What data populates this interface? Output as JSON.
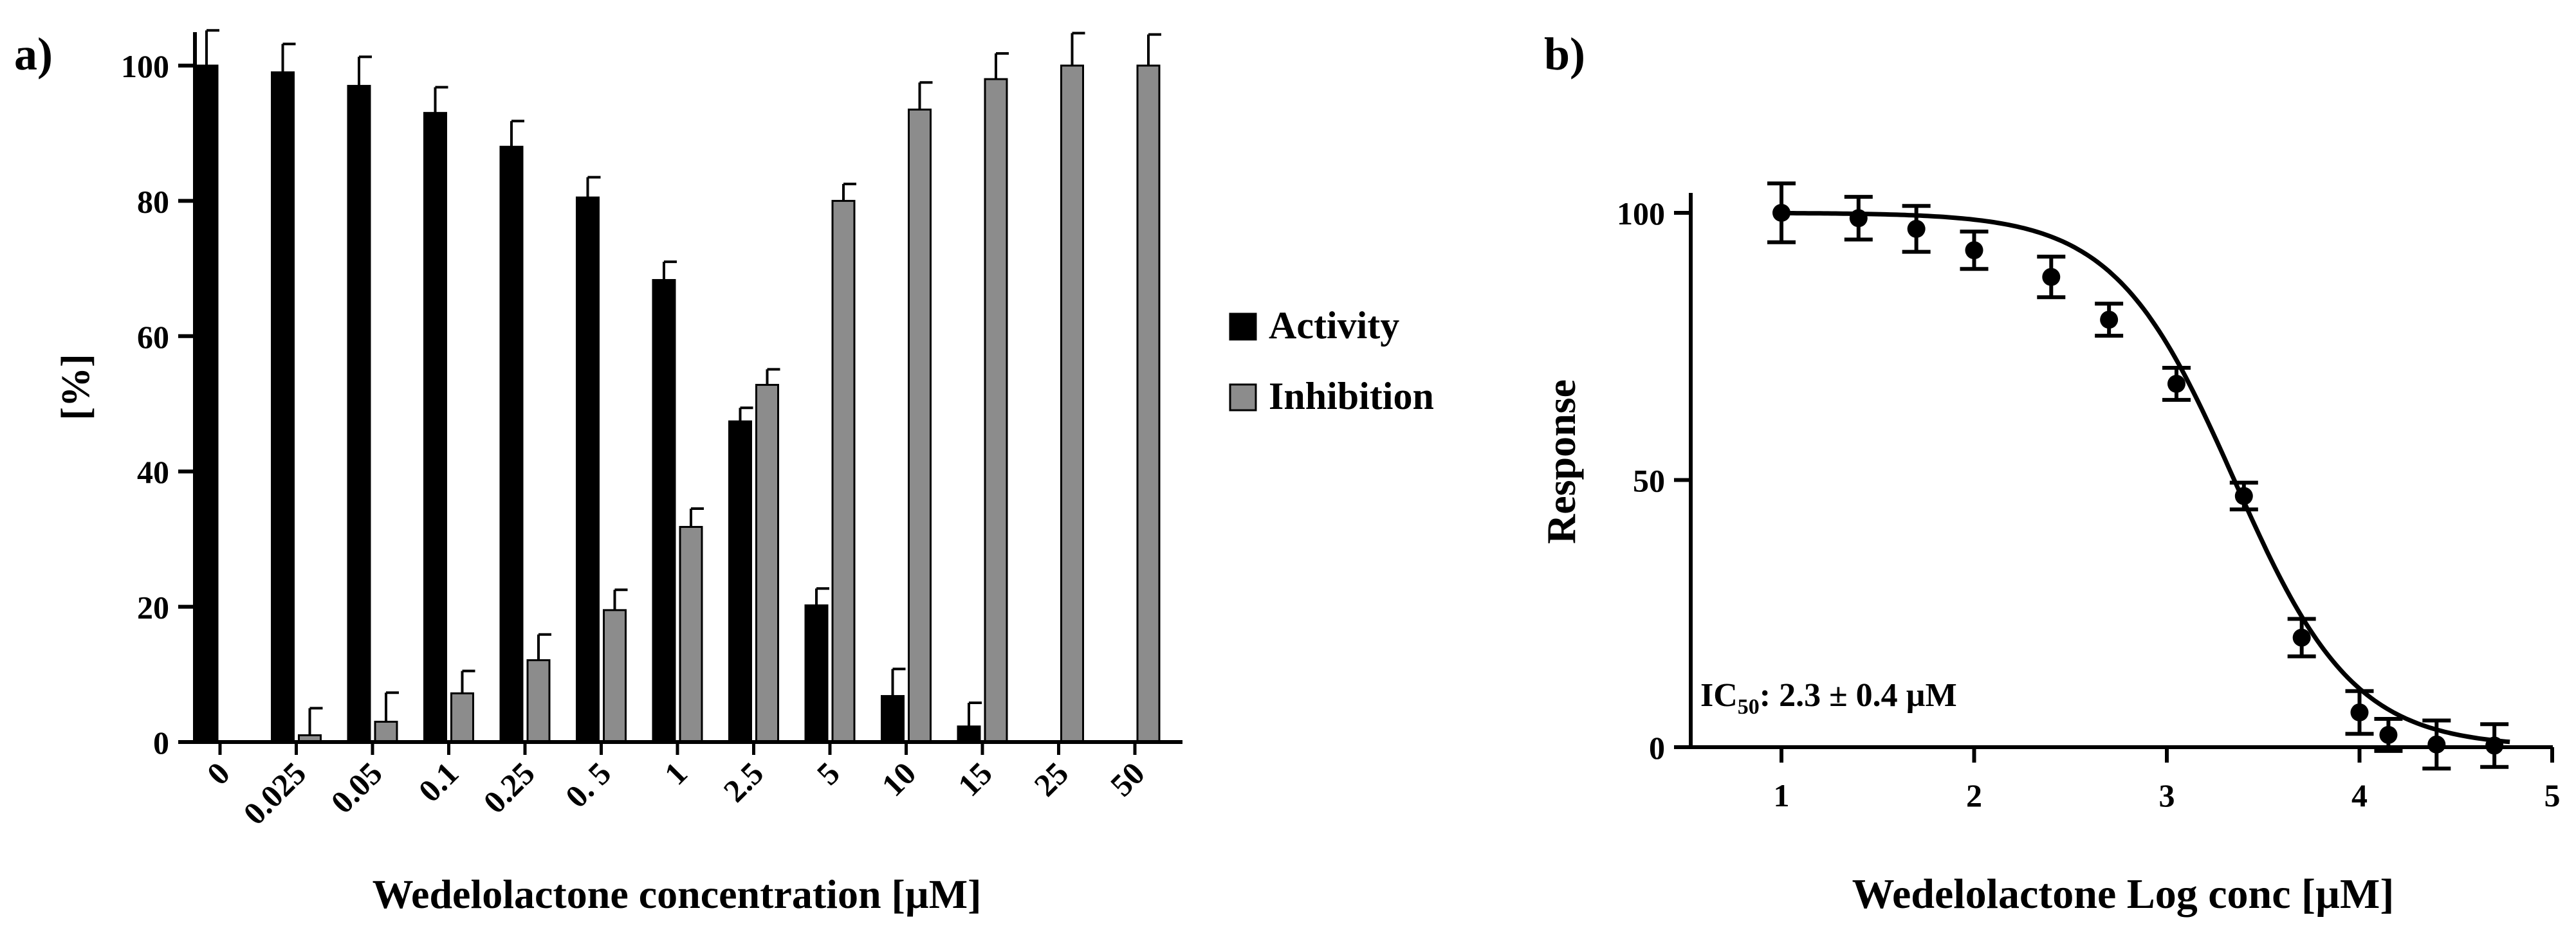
{
  "chart_data": [
    {
      "panel_label": "a)",
      "type": "bar",
      "xlabel": "Wedelolactone concentration [µM]",
      "ylabel": "[%]",
      "ylim": [
        0,
        100
      ],
      "yticks": [
        "0",
        "20",
        "40",
        "60",
        "80",
        "100"
      ],
      "categories": [
        "0",
        "0.025",
        "0.05",
        "0.1",
        "0.25",
        "0. 5",
        "1",
        "2.5",
        "5",
        "10",
        "15",
        "25",
        "50"
      ],
      "legend_position": "right",
      "series": [
        {
          "name": "Activity",
          "color": "#000000",
          "values": [
            100,
            99,
            97,
            93,
            88,
            80.5,
            68.3,
            47.4,
            20.2,
            6.8,
            2.3,
            null,
            null
          ],
          "errors": [
            5.2,
            4.2,
            4.3,
            3.8,
            3.8,
            3.0,
            2.7,
            2.0,
            2.5,
            4.0,
            3.5,
            null,
            null
          ]
        },
        {
          "name": "Inhibition",
          "color": "#8c8c8c",
          "values": [
            null,
            1,
            3,
            7.2,
            12.1,
            19.5,
            31.8,
            52.8,
            80,
            93.5,
            98,
            100,
            100
          ],
          "errors": [
            null,
            4.0,
            4.3,
            3.3,
            3.8,
            3.0,
            2.7,
            2.3,
            2.5,
            4.0,
            3.8,
            4.8,
            4.6
          ]
        }
      ]
    },
    {
      "panel_label": "b)",
      "type": "scatter",
      "fit": "sigmoidal dose-response",
      "xlabel": "Wedelolactone Log conc [µM]",
      "ylabel": "Response",
      "xlim": [
        0.5,
        5
      ],
      "ylim": [
        0,
        105
      ],
      "xticks": [
        "1",
        "2",
        "3",
        "4",
        "5"
      ],
      "yticks": [
        "0",
        "50",
        "100"
      ],
      "annotation": {
        "prefix": "IC",
        "subscript": "50",
        "text": ": 2.3 ± 0.4 µM"
      },
      "points": {
        "x": [
          1.0,
          1.4,
          1.7,
          2.0,
          2.4,
          2.7,
          3.05,
          3.4,
          3.7,
          4.0,
          4.15,
          4.4,
          4.7
        ],
        "y": [
          100,
          99,
          97,
          93,
          88,
          80,
          68,
          47,
          20.5,
          6.5,
          2.3,
          0.5,
          0.3
        ],
        "errors": [
          5.5,
          4.0,
          4.3,
          3.5,
          3.8,
          3.0,
          3.0,
          2.5,
          3.5,
          4.0,
          3.0,
          4.5,
          4.0
        ]
      },
      "curve": {
        "top": 100,
        "bottom": 0,
        "logIC50": 3.35,
        "hill": -1.4
      }
    }
  ]
}
